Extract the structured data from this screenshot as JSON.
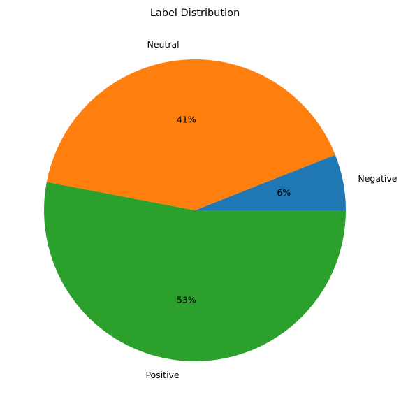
{
  "chart_data": {
    "type": "pie",
    "title": "Label Distribution",
    "categories": [
      "Negative",
      "Neutral",
      "Positive"
    ],
    "values": [
      6,
      41,
      53
    ],
    "percent_labels": [
      "6%",
      "41%",
      "53%"
    ],
    "colors": [
      "#1f77b4",
      "#ff7f0e",
      "#2ca02c"
    ],
    "legend": "none",
    "start_angle_deg": 0,
    "direction": "counterclockwise"
  }
}
